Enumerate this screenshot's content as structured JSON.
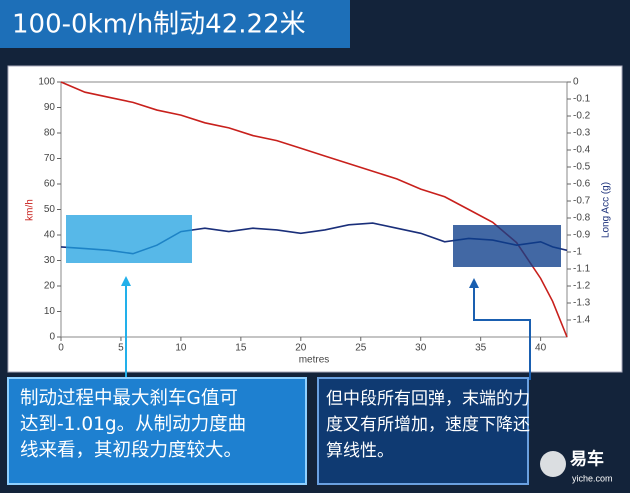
{
  "header": {
    "title": "100-0km/h制动42.22米"
  },
  "chart_data": {
    "type": "line",
    "xlabel": "metres",
    "ylabel": "km/h",
    "y2label": "Long Acc (g)",
    "x": [
      0,
      2,
      4,
      6,
      8,
      10,
      12,
      14,
      16,
      18,
      20,
      22,
      24,
      26,
      28,
      30,
      32,
      34,
      36,
      38,
      40,
      41,
      42.2
    ],
    "series": [
      {
        "name": "km/h",
        "color": "#c8201c",
        "values": [
          100,
          96,
          94,
          92,
          89,
          87,
          84,
          82,
          79,
          77,
          74,
          71,
          68,
          65,
          62,
          58,
          55,
          50,
          45,
          37,
          23,
          14,
          0
        ]
      },
      {
        "name": "Long Acc (g)",
        "color": "#1a2f7a",
        "axis": "y2",
        "values": [
          -0.97,
          -0.98,
          -0.99,
          -1.01,
          -0.96,
          -0.88,
          -0.86,
          -0.88,
          -0.86,
          -0.87,
          -0.89,
          -0.87,
          -0.84,
          -0.83,
          -0.86,
          -0.89,
          -0.94,
          -0.92,
          -0.93,
          -0.96,
          -0.94,
          -0.97,
          -0.99
        ]
      }
    ],
    "xlim": [
      0,
      42.2
    ],
    "xticks": [
      0,
      5,
      10,
      15,
      20,
      25,
      30,
      35,
      40
    ],
    "ylim": [
      0,
      100
    ],
    "yticks": [
      0,
      10,
      20,
      30,
      40,
      50,
      60,
      70,
      80,
      90,
      100
    ],
    "y2lim": [
      -1.5,
      0
    ],
    "y2ticks": [
      0,
      -0.1,
      -0.2,
      -0.3,
      -0.4,
      -0.5,
      -0.6,
      -0.7,
      -0.8,
      -0.9,
      -1,
      -1.1,
      -1.2,
      -1.3,
      -1.4
    ]
  },
  "callouts": [
    {
      "lines": [
        "制动过程中最大刹车G值可",
        "达到-1.01g。从制动力度曲",
        "线来看，其初段力度较大。"
      ]
    },
    {
      "lines": [
        "但中段所有回弹，末端的力",
        "度又有所增加，速度下降还",
        "算线性。"
      ]
    }
  ],
  "watermark": {
    "brand": "易车",
    "site": "yiche.com"
  }
}
